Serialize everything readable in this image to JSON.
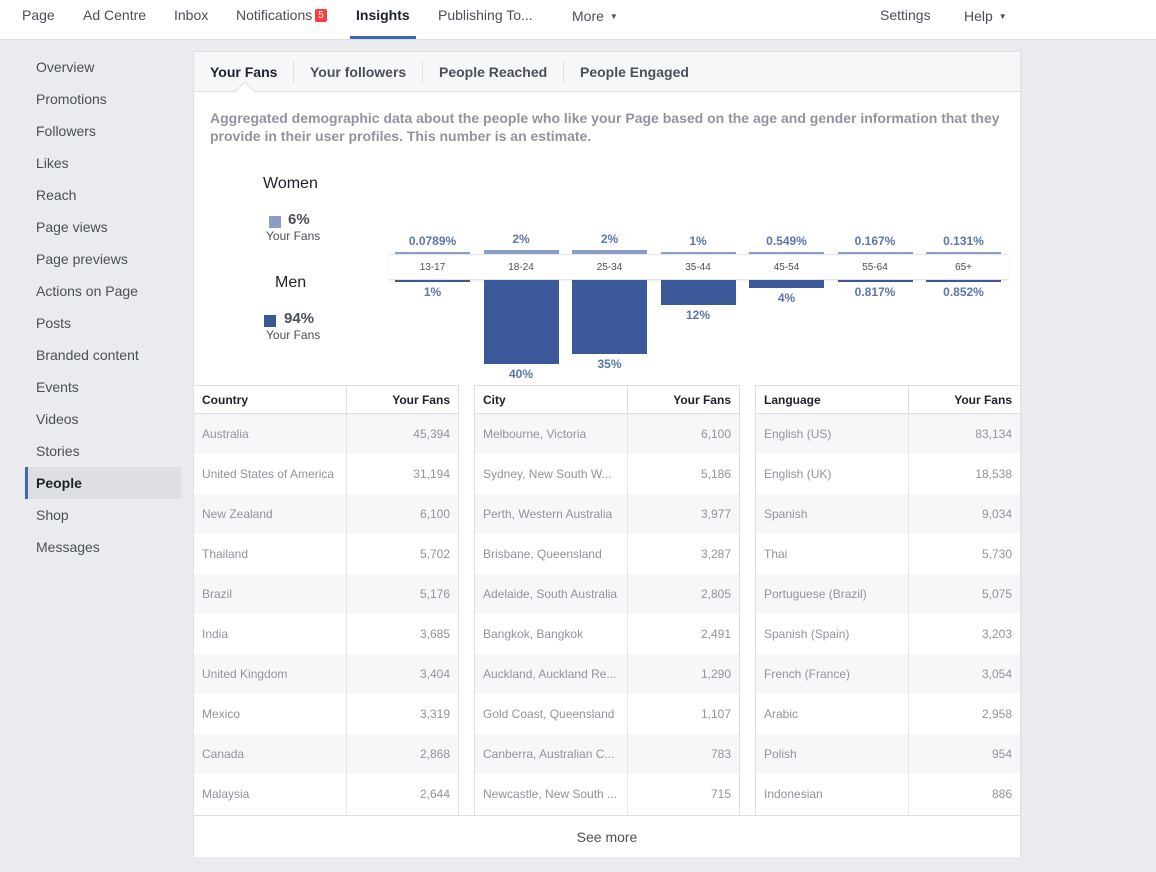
{
  "topnav": {
    "items": [
      {
        "label": "Page"
      },
      {
        "label": "Ad Centre"
      },
      {
        "label": "Inbox"
      },
      {
        "label": "Notifications",
        "badge": "5"
      },
      {
        "label": "Insights"
      },
      {
        "label": "Publishing To..."
      },
      {
        "label": "More"
      },
      {
        "label": "Settings"
      },
      {
        "label": "Help"
      }
    ],
    "active": "Insights",
    "badge_color": "#fa3e3e",
    "accent_color": "#4267b2"
  },
  "sidebar": {
    "items": [
      "Overview",
      "Promotions",
      "Followers",
      "Likes",
      "Reach",
      "Page views",
      "Page previews",
      "Actions on Page",
      "Posts",
      "Branded content",
      "Events",
      "Videos",
      "Stories",
      "People",
      "Shop",
      "Messages"
    ],
    "active": "People"
  },
  "tabs": [
    "Your Fans",
    "Your followers",
    "People Reached",
    "People Engaged"
  ],
  "active_tab": "Your Fans",
  "description": "Aggregated demographic data about the people who like your Page based on the age and gender information that they provide in their user profiles. This number is an estimate.",
  "legend": {
    "women": {
      "title": "Women",
      "pct": "6%",
      "sub": "Your Fans",
      "color": "#8b9dc3"
    },
    "men": {
      "title": "Men",
      "pct": "94%",
      "sub": "Your Fans",
      "color": "#3b5998"
    }
  },
  "chart_data": {
    "type": "bar",
    "categories": [
      "13-17",
      "18-24",
      "25-34",
      "35-44",
      "45-54",
      "55-64",
      "65+"
    ],
    "series": [
      {
        "name": "Women",
        "values": [
          0.0789,
          2,
          2,
          1,
          0.549,
          0.167,
          0.131
        ],
        "labels": [
          "0.0789%",
          "2%",
          "2%",
          "1%",
          "0.549%",
          "0.167%",
          "0.131%"
        ]
      },
      {
        "name": "Men",
        "values": [
          1,
          40,
          35,
          12,
          4,
          0.817,
          0.852
        ],
        "labels": [
          "1%",
          "40%",
          "35%",
          "12%",
          "4%",
          "0.817%",
          "0.852%"
        ]
      }
    ],
    "unit": "%"
  },
  "tables": [
    {
      "headers": [
        "Country",
        "Your Fans"
      ],
      "rows": [
        [
          "Australia",
          "45,394"
        ],
        [
          "United States of America",
          "31,194"
        ],
        [
          "New Zealand",
          "6,100"
        ],
        [
          "Thailand",
          "5,702"
        ],
        [
          "Brazil",
          "5,176"
        ],
        [
          "India",
          "3,685"
        ],
        [
          "United Kingdom",
          "3,404"
        ],
        [
          "Mexico",
          "3,319"
        ],
        [
          "Canada",
          "2,868"
        ],
        [
          "Malaysia",
          "2,644"
        ]
      ]
    },
    {
      "headers": [
        "City",
        "Your Fans"
      ],
      "rows": [
        [
          "Melbourne, Victoria",
          "6,100"
        ],
        [
          "Sydney, New South W...",
          "5,186"
        ],
        [
          "Perth, Western Australia",
          "3,977"
        ],
        [
          "Brisbane, Queensland",
          "3,287"
        ],
        [
          "Adelaide, South Australia",
          "2,805"
        ],
        [
          "Bangkok, Bangkok",
          "2,491"
        ],
        [
          "Auckland, Auckland Re...",
          "1,290"
        ],
        [
          "Gold Coast, Queensland",
          "1,107"
        ],
        [
          "Canberra, Australian C...",
          "783"
        ],
        [
          "Newcastle, New South ...",
          "715"
        ]
      ]
    },
    {
      "headers": [
        "Language",
        "Your Fans"
      ],
      "rows": [
        [
          "English (US)",
          "83,134"
        ],
        [
          "English (UK)",
          "18,538"
        ],
        [
          "Spanish",
          "9,034"
        ],
        [
          "Thai",
          "5,730"
        ],
        [
          "Portuguese (Brazil)",
          "5,075"
        ],
        [
          "Spanish (Spain)",
          "3,203"
        ],
        [
          "French (France)",
          "3,054"
        ],
        [
          "Arabic",
          "2,958"
        ],
        [
          "Polish",
          "954"
        ],
        [
          "Indonesian",
          "886"
        ]
      ]
    }
  ],
  "see_more": "See more"
}
